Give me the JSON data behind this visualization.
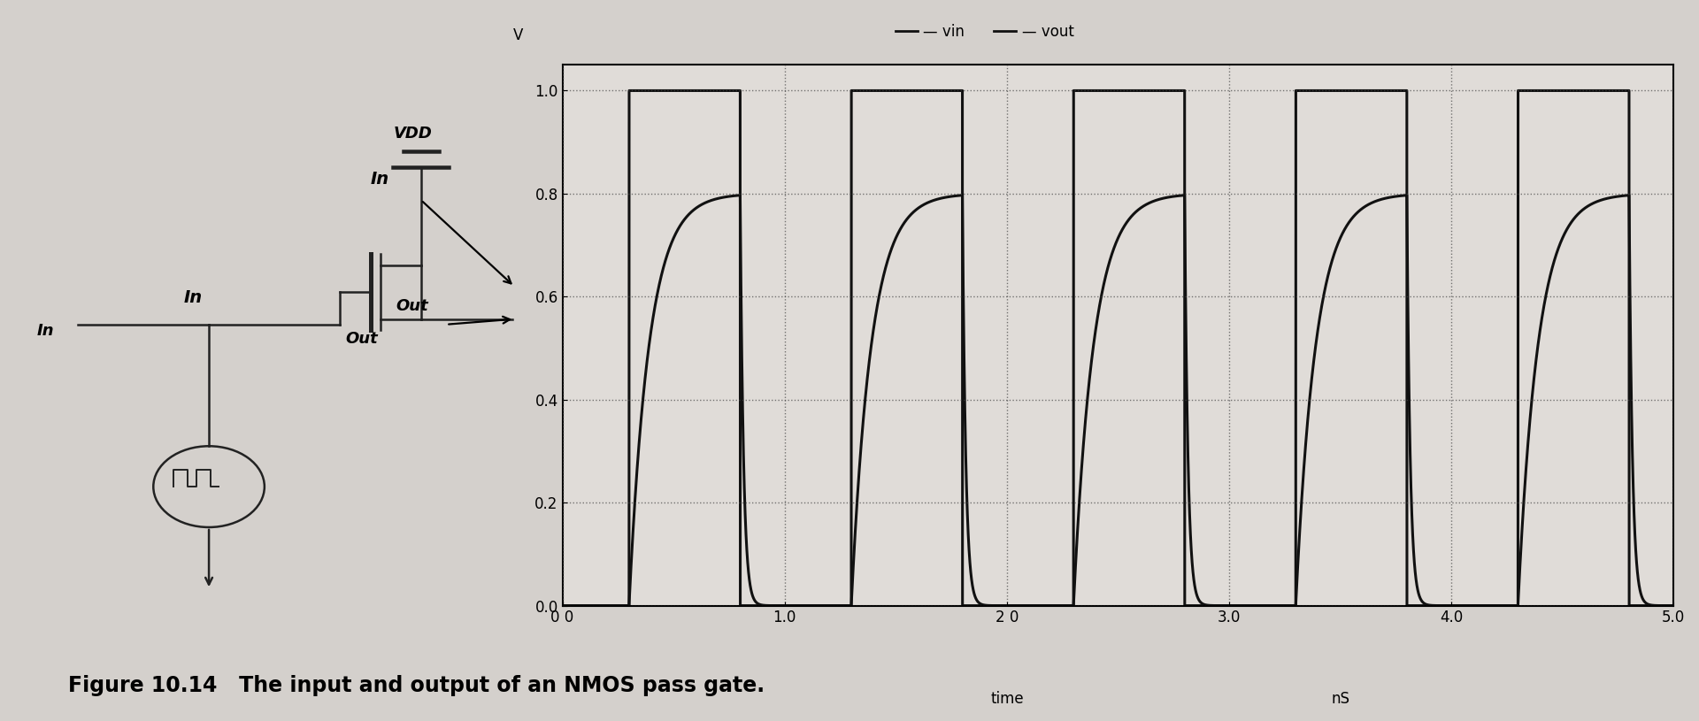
{
  "bg_color": "#d4d0cc",
  "plot_bg_color": "#e0dcd8",
  "ylabel": "V",
  "xlabel_time": "time",
  "xlabel_ns": "nS",
  "legend_vin": "vin",
  "legend_vout": "vout",
  "xlim": [
    0.0,
    5.0
  ],
  "ylim": [
    0.0,
    1.05
  ],
  "yticks": [
    0.0,
    0.2,
    0.4,
    0.6,
    0.8,
    1.0
  ],
  "xticks": [
    0.0,
    1.0,
    2.0,
    3.0,
    4.0,
    5.0
  ],
  "xtick_labels": [
    "0 0",
    "1.0",
    "2 0",
    "3.0",
    "4.0",
    "5.0"
  ],
  "ytick_labels": [
    "0.0",
    "0.2",
    "0.4",
    "0.6",
    "0.8",
    "1.0"
  ],
  "line_color": "#111111",
  "line_width": 2.2,
  "grid_color": "#444444",
  "caption": "Figure 10.14   The input and output of an NMOS pass gate.",
  "vmax_out": 0.8,
  "tau_rise": 0.09,
  "tau_fall": 0.015,
  "pulse_starts": [
    0.3,
    1.3,
    2.3,
    3.3,
    4.3
  ],
  "pulse_ends": [
    0.8,
    1.8,
    2.8,
    3.8,
    4.8
  ]
}
